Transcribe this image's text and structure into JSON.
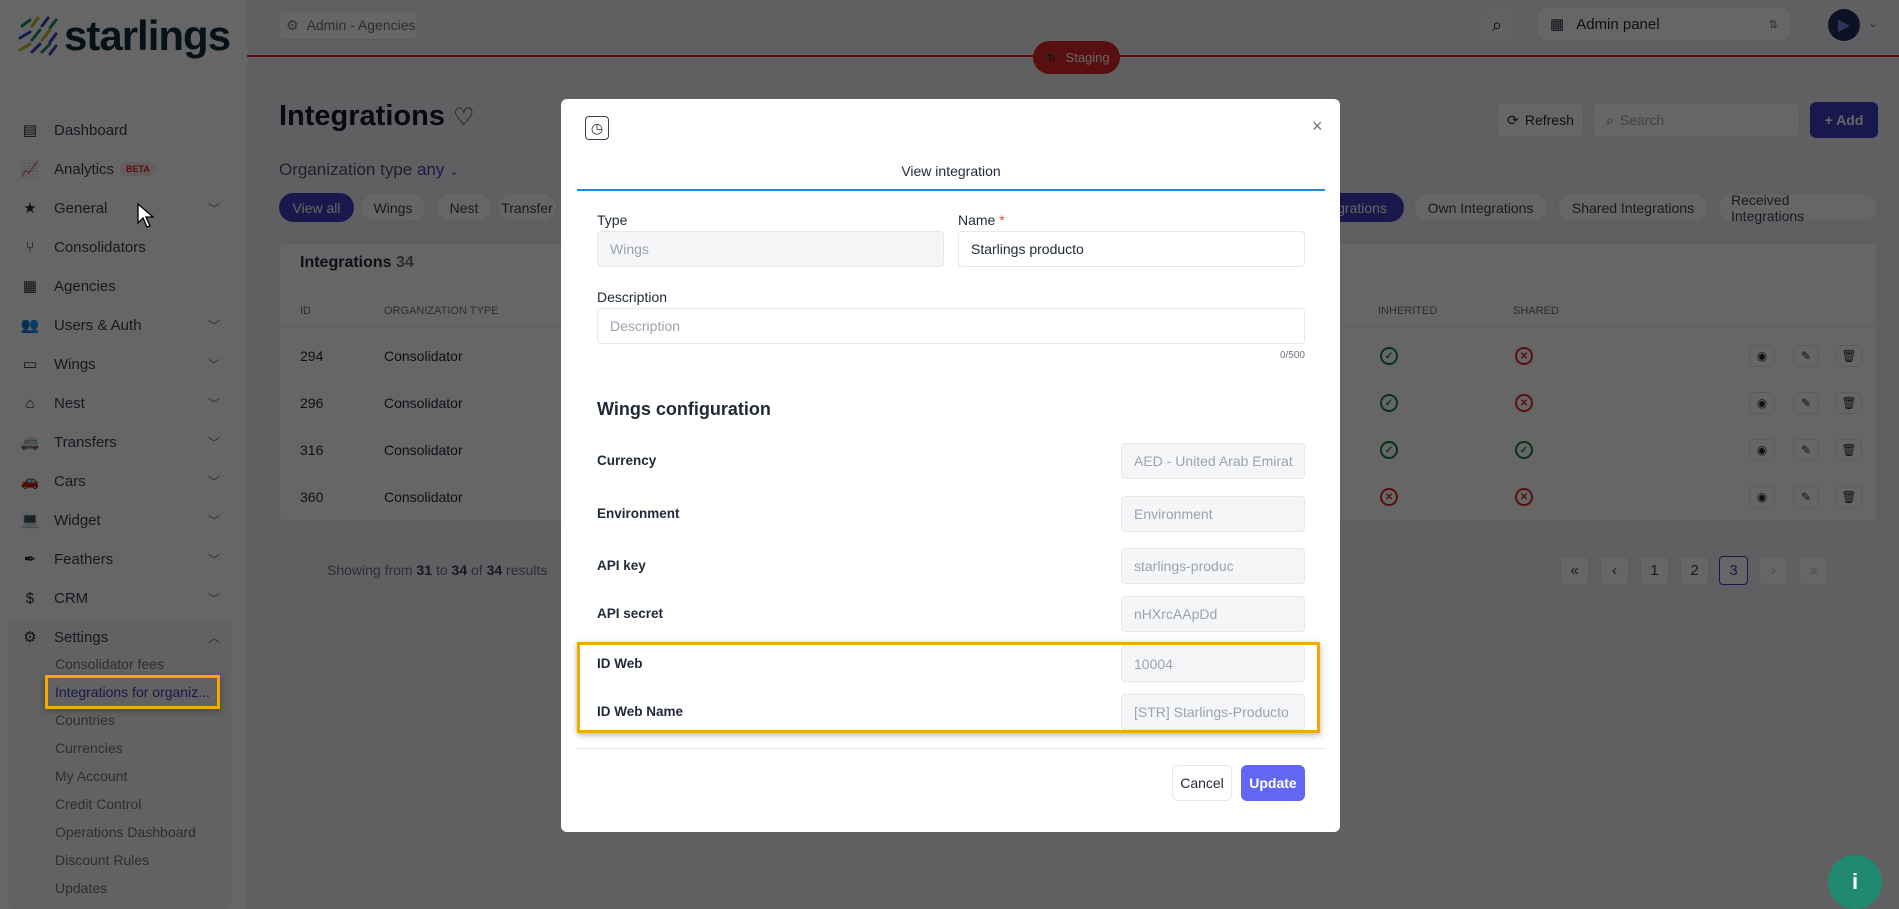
{
  "brand": {
    "name": "starlings"
  },
  "topbar": {
    "context": "Admin - Agencies",
    "env_badge": "Staging",
    "panel_select": "Admin panel"
  },
  "sidebar": {
    "items": [
      {
        "label": "Dashboard",
        "icon": "newspaper-icon",
        "chev": false
      },
      {
        "label": "Analytics",
        "icon": "chart-line-icon",
        "badge": "BETA",
        "chev": false
      },
      {
        "label": "General",
        "icon": "star-icon",
        "chev": true
      },
      {
        "label": "Consolidators",
        "icon": "fork-icon",
        "chev": false
      },
      {
        "label": "Agencies",
        "icon": "building-icon",
        "chev": false
      },
      {
        "label": "Users & Auth",
        "icon": "users-gear-icon",
        "chev": true
      },
      {
        "label": "Wings",
        "icon": "ticket-icon",
        "chev": true
      },
      {
        "label": "Nest",
        "icon": "house-icon",
        "chev": true
      },
      {
        "label": "Transfers",
        "icon": "van-icon",
        "chev": true
      },
      {
        "label": "Cars",
        "icon": "car-icon",
        "chev": true
      },
      {
        "label": "Widget",
        "icon": "laptop-code-icon",
        "chev": true
      },
      {
        "label": "Feathers",
        "icon": "feather-icon",
        "chev": true
      },
      {
        "label": "CRM",
        "icon": "money-card-icon",
        "chev": true
      },
      {
        "label": "Settings",
        "icon": "gears-icon",
        "chev": true,
        "expanded": true
      }
    ],
    "settings_sub": [
      "Consolidator fees",
      "Integrations for organiz...",
      "Countries",
      "Currencies",
      "My Account",
      "Credit Control",
      "Operations Dashboard",
      "Discount Rules",
      "Updates"
    ],
    "active_sub": 1
  },
  "page": {
    "title": "Integrations",
    "org_type_label": "Organization type",
    "org_type_value": "any",
    "refresh": "Refresh",
    "search_placeholder": "Search",
    "add": "+ Add",
    "filters_left": [
      "View all",
      "Wings",
      "Nest",
      "Transfer"
    ],
    "filters_right": [
      "grations",
      "Own Integrations",
      "Shared Integrations",
      "Received Integrations"
    ]
  },
  "table": {
    "title": "Integrations",
    "count": "34",
    "columns": [
      "ID",
      "Organization type",
      "Inherited",
      "Shared"
    ],
    "rows": [
      {
        "id": "294",
        "org_type": "Consolidator",
        "inherited": true,
        "shared": false
      },
      {
        "id": "296",
        "org_type": "Consolidator",
        "inherited": true,
        "shared": false
      },
      {
        "id": "316",
        "org_type": "Consolidator",
        "inherited": true,
        "shared": true
      },
      {
        "id": "360",
        "org_type": "Consolidator",
        "inherited": false,
        "shared": false
      }
    ]
  },
  "pagination": {
    "prefix": "Showing from",
    "from": "31",
    "to_word": "to",
    "to": "34",
    "of_word": "of",
    "total": "34",
    "suffix": "results",
    "pages": [
      "1",
      "2",
      "3"
    ],
    "current": "3"
  },
  "modal": {
    "tab": "View integration",
    "type_label": "Type",
    "type_value": "Wings",
    "name_label": "Name",
    "required_mark": "*",
    "name_value": "Starlings producto",
    "desc_label": "Description",
    "desc_placeholder": "Description",
    "desc_counter": "0/500",
    "section": "Wings configuration",
    "fields": [
      {
        "label": "Currency",
        "value": "AED - United Arab Emirat"
      },
      {
        "label": "Environment",
        "value": "Environment",
        "placeholder": true
      },
      {
        "label": "API key",
        "value": "starlings-produc"
      },
      {
        "label": "API secret",
        "value": "nHXrcAApDd"
      },
      {
        "label": "ID Web",
        "value": "10004"
      },
      {
        "label": "ID Web Name",
        "value": "[STR] Starlings-Producto"
      }
    ],
    "cancel": "Cancel",
    "update": "Update"
  },
  "colors": {
    "primary": "#3f3dbd",
    "update": "#6366f1",
    "highlight": "#f5a800",
    "danger": "#dc2626",
    "success": "#15803d"
  }
}
